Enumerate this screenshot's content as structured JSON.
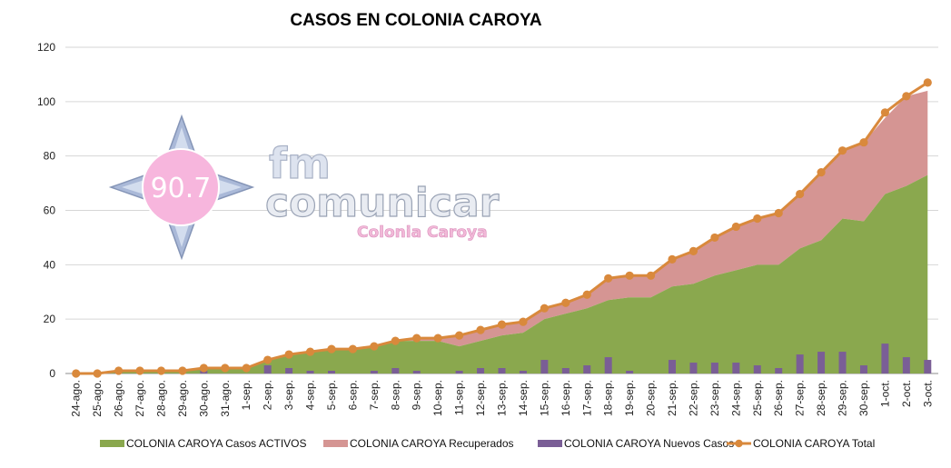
{
  "chart_data": {
    "type": "area",
    "title": "CASOS EN COLONIA CAROYA",
    "ylim": [
      0,
      120
    ],
    "yticks": [
      0,
      20,
      40,
      60,
      80,
      100,
      120
    ],
    "grid": true,
    "legend_position": "bottom",
    "categories": [
      "24-ago.",
      "25-ago.",
      "26-ago.",
      "27-ago.",
      "28-ago.",
      "29-ago.",
      "30-ago.",
      "31-ago.",
      "1-sep.",
      "2-sep.",
      "3-sep.",
      "4-sep.",
      "5-sep.",
      "6-sep.",
      "7-sep.",
      "8-sep.",
      "9-sep.",
      "10-sep.",
      "11-sep.",
      "12-sep.",
      "13-sep.",
      "14-sep.",
      "15-sep.",
      "16-sep.",
      "17-sep.",
      "18-sep.",
      "19-sep.",
      "20-sep.",
      "21-sep.",
      "22-sep.",
      "23-sep.",
      "24-sep.",
      "25-sep.",
      "26-sep.",
      "27-sep.",
      "28-sep.",
      "29-sep.",
      "30-sep.",
      "1-oct.",
      "2-oct.",
      "3-oct."
    ],
    "series": [
      {
        "name": "COLONIA CAROYA Casos ACTIVOS",
        "type": "area",
        "color": "#8aa84e",
        "values": [
          0,
          0,
          1,
          1,
          1,
          1,
          2,
          2,
          2,
          5,
          7,
          8,
          9,
          9,
          10,
          12,
          12,
          12,
          10,
          12,
          14,
          15,
          20,
          22,
          24,
          27,
          28,
          28,
          32,
          33,
          36,
          38,
          40,
          40,
          46,
          49,
          57,
          56,
          66,
          69,
          73
        ]
      },
      {
        "name": "COLONIA CAROYA Recuperados",
        "type": "area",
        "color": "#d59593",
        "values": [
          0,
          0,
          0,
          0,
          0,
          0,
          0,
          0,
          0,
          0,
          0,
          0,
          0,
          0,
          0,
          0,
          1,
          1,
          4,
          4,
          4,
          4,
          4,
          4,
          5,
          8,
          8,
          8,
          10,
          12,
          14,
          16,
          17,
          19,
          20,
          25,
          25,
          29,
          28,
          33,
          31
        ]
      },
      {
        "name": "COLONIA CAROYA Nuevos Casos",
        "type": "bar",
        "color": "#7a5e96",
        "values": [
          0,
          0,
          1,
          0,
          0,
          0,
          1,
          0,
          0,
          3,
          2,
          1,
          1,
          0,
          1,
          2,
          1,
          0,
          1,
          2,
          2,
          1,
          5,
          2,
          3,
          6,
          1,
          0,
          5,
          4,
          4,
          4,
          3,
          2,
          7,
          8,
          8,
          3,
          11,
          6,
          5
        ]
      },
      {
        "name": "COLONIA CAROYA Total",
        "type": "line",
        "color": "#d9893c",
        "values": [
          0,
          0,
          1,
          1,
          1,
          1,
          2,
          2,
          2,
          5,
          7,
          8,
          9,
          9,
          10,
          12,
          13,
          13,
          14,
          16,
          18,
          19,
          24,
          26,
          29,
          35,
          36,
          36,
          42,
          45,
          50,
          54,
          57,
          59,
          66,
          74,
          82,
          85,
          96,
          102,
          107
        ]
      }
    ]
  },
  "watermark": {
    "frequency": "90.7",
    "brand_fm": "fm",
    "brand_name": "comunicar",
    "brand_location": "Colonia Caroya"
  }
}
